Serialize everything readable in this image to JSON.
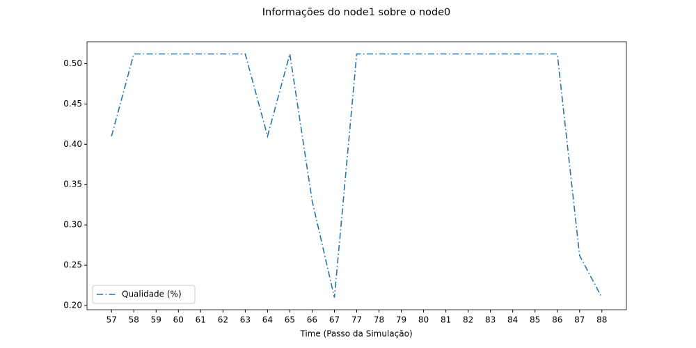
{
  "chart_data": {
    "type": "line",
    "title": "Informações do node1 sobre o node0",
    "x_label": "Time (Passo da Simulação)",
    "categories": [
      "57",
      "58",
      "59",
      "60",
      "61",
      "62",
      "63",
      "64",
      "65",
      "66",
      "67",
      "77",
      "78",
      "79",
      "80",
      "81",
      "82",
      "83",
      "84",
      "85",
      "86",
      "87",
      "88"
    ],
    "series": [
      {
        "name": "Qualidade (%)",
        "color": "#1f77b4",
        "values": [
          0.41,
          0.512,
          0.512,
          0.512,
          0.512,
          0.512,
          0.512,
          0.41,
          0.512,
          0.33,
          0.21,
          0.512,
          0.512,
          0.512,
          0.512,
          0.512,
          0.512,
          0.512,
          0.512,
          0.512,
          0.512,
          0.262,
          0.21
        ]
      }
    ],
    "ylim": [
      0.1949,
      0.5271
    ],
    "yticks": [
      {
        "value": 0.2,
        "label": "0.20"
      },
      0.25,
      {
        "value": 0.3,
        "label": "0.30"
      },
      0.35,
      {
        "value": 0.4,
        "label": "0.40"
      },
      0.45,
      {
        "value": 0.5,
        "label": "0.50"
      }
    ],
    "grid": false,
    "legend": "lower left"
  }
}
